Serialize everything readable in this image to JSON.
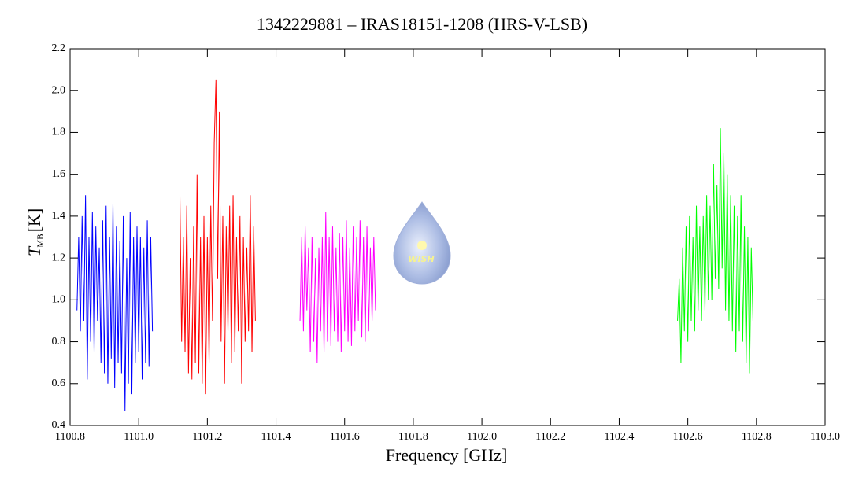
{
  "chart_data": {
    "type": "line",
    "title": "1342229881 – IRAS18151-1208 (HRS-V-LSB)",
    "x_label": "Frequency [GHz]",
    "y_label_parts": [
      "T",
      "MB",
      "[K]"
    ],
    "logo_text": "WISH",
    "xlim": [
      1100.8,
      1103.0
    ],
    "xticks": [
      1100.8,
      {
        "value": 1101.0,
        "label": "1101.0"
      },
      1101.2,
      1101.4,
      1101.6,
      1101.8,
      {
        "value": 1102.0,
        "label": "1102.0"
      },
      1102.2,
      1102.4,
      1102.6,
      1102.8,
      {
        "value": 1103.0,
        "label": "1103.0"
      }
    ],
    "ylim": [
      0.4,
      2.2
    ],
    "yticks": [
      0.4,
      0.6,
      0.8,
      {
        "value": 1.0,
        "label": "1.0"
      },
      1.2,
      1.4,
      1.6,
      1.8,
      {
        "value": 2.0,
        "label": "2.0"
      },
      2.2
    ],
    "grid": false,
    "series": [
      {
        "color": "#0000ff",
        "x": [
          1100.82,
          1100.825,
          1100.83,
          1100.835,
          1100.84,
          1100.845,
          1100.85,
          1100.855,
          1100.86,
          1100.865,
          1100.87,
          1100.875,
          1100.88,
          1100.885,
          1100.89,
          1100.895,
          1100.9,
          1100.905,
          1100.91,
          1100.915,
          1100.92,
          1100.925,
          1100.93,
          1100.935,
          1100.94,
          1100.945,
          1100.95,
          1100.955,
          1100.96,
          1100.965,
          1100.97,
          1100.975,
          1100.98,
          1100.985,
          1100.99,
          1100.995,
          1101.0,
          1101.005,
          1101.01,
          1101.015,
          1101.02,
          1101.025,
          1101.03,
          1101.035,
          1101.04
        ],
        "values": [
          0.95,
          1.3,
          0.85,
          1.4,
          0.9,
          1.5,
          0.62,
          1.3,
          0.8,
          1.42,
          0.75,
          1.35,
          0.9,
          1.25,
          0.7,
          1.38,
          0.65,
          1.45,
          0.6,
          1.3,
          0.72,
          1.46,
          0.58,
          1.35,
          0.7,
          1.28,
          0.65,
          1.4,
          0.47,
          1.2,
          0.6,
          1.42,
          0.55,
          1.3,
          0.7,
          1.35,
          0.75,
          1.3,
          0.62,
          1.25,
          0.7,
          1.38,
          0.68,
          1.3,
          0.85
        ]
      },
      {
        "color": "#ff0000",
        "x": [
          1101.12,
          1101.125,
          1101.13,
          1101.135,
          1101.14,
          1101.145,
          1101.15,
          1101.155,
          1101.16,
          1101.165,
          1101.17,
          1101.175,
          1101.18,
          1101.185,
          1101.19,
          1101.195,
          1101.2,
          1101.205,
          1101.21,
          1101.215,
          1101.22,
          1101.225,
          1101.23,
          1101.235,
          1101.24,
          1101.245,
          1101.25,
          1101.255,
          1101.26,
          1101.265,
          1101.27,
          1101.275,
          1101.28,
          1101.285,
          1101.29,
          1101.295,
          1101.3,
          1101.305,
          1101.31,
          1101.315,
          1101.32,
          1101.325,
          1101.33,
          1101.335,
          1101.34
        ],
        "values": [
          1.5,
          0.8,
          1.3,
          0.75,
          1.45,
          0.65,
          1.2,
          0.62,
          1.35,
          0.7,
          1.6,
          0.65,
          1.3,
          0.6,
          1.4,
          0.55,
          1.3,
          0.7,
          1.45,
          0.9,
          1.75,
          2.05,
          1.1,
          1.9,
          0.8,
          1.4,
          0.6,
          1.35,
          0.85,
          1.45,
          0.7,
          1.5,
          0.75,
          1.3,
          0.85,
          1.4,
          0.6,
          1.3,
          0.8,
          1.25,
          0.85,
          1.5,
          0.75,
          1.35,
          0.9
        ]
      },
      {
        "color": "#ff00ff",
        "x": [
          1101.47,
          1101.475,
          1101.48,
          1101.485,
          1101.49,
          1101.495,
          1101.5,
          1101.505,
          1101.51,
          1101.515,
          1101.52,
          1101.525,
          1101.53,
          1101.535,
          1101.54,
          1101.545,
          1101.55,
          1101.555,
          1101.56,
          1101.565,
          1101.57,
          1101.575,
          1101.58,
          1101.585,
          1101.59,
          1101.595,
          1101.6,
          1101.605,
          1101.61,
          1101.615,
          1101.62,
          1101.625,
          1101.63,
          1101.635,
          1101.64,
          1101.645,
          1101.65,
          1101.655,
          1101.66,
          1101.665,
          1101.67,
          1101.675,
          1101.68,
          1101.685,
          1101.69
        ],
        "values": [
          0.9,
          1.3,
          0.85,
          1.35,
          0.95,
          1.25,
          0.75,
          1.3,
          0.8,
          1.2,
          0.7,
          1.25,
          0.85,
          1.3,
          0.75,
          1.42,
          0.8,
          1.3,
          0.78,
          1.35,
          0.85,
          1.25,
          0.8,
          1.32,
          0.75,
          1.3,
          0.85,
          1.38,
          0.8,
          1.25,
          0.78,
          1.35,
          0.85,
          1.3,
          0.9,
          1.38,
          0.82,
          1.3,
          0.8,
          1.35,
          0.85,
          1.25,
          0.9,
          1.3,
          0.95
        ]
      },
      {
        "color": "#00ff00",
        "x": [
          1102.57,
          1102.575,
          1102.58,
          1102.585,
          1102.59,
          1102.595,
          1102.6,
          1102.605,
          1102.61,
          1102.615,
          1102.62,
          1102.625,
          1102.63,
          1102.635,
          1102.64,
          1102.645,
          1102.65,
          1102.655,
          1102.66,
          1102.665,
          1102.67,
          1102.675,
          1102.68,
          1102.685,
          1102.69,
          1102.695,
          1102.7,
          1102.705,
          1102.71,
          1102.715,
          1102.72,
          1102.725,
          1102.73,
          1102.735,
          1102.74,
          1102.745,
          1102.75,
          1102.755,
          1102.76,
          1102.765,
          1102.77,
          1102.775,
          1102.78,
          1102.785,
          1102.79
        ],
        "values": [
          0.9,
          1.1,
          0.7,
          1.25,
          0.85,
          1.35,
          0.8,
          1.4,
          0.9,
          1.3,
          0.85,
          1.45,
          0.95,
          1.35,
          0.9,
          1.4,
          0.95,
          1.5,
          1.0,
          1.45,
          1.0,
          1.65,
          1.1,
          1.55,
          1.05,
          1.82,
          1.15,
          1.7,
          0.95,
          1.6,
          0.9,
          1.5,
          0.85,
          1.45,
          0.75,
          1.4,
          0.85,
          1.5,
          0.8,
          1.35,
          0.7,
          1.3,
          0.65,
          1.25,
          0.9
        ]
      }
    ]
  }
}
